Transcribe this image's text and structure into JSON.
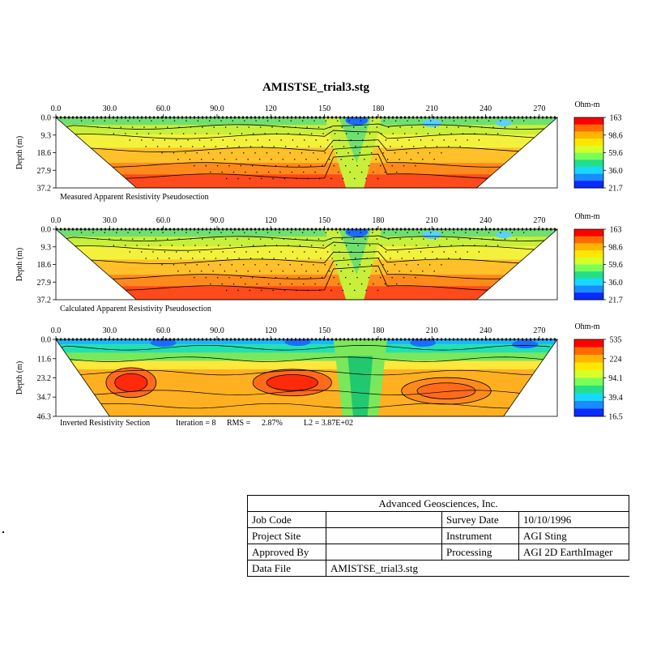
{
  "figure": {
    "title": "AMISTSE_trial3.stg"
  },
  "chart_data": [
    {
      "type": "heatmap",
      "title": "",
      "caption": "Measured Apparent Resistivity Pseudosection",
      "xlabel": "",
      "ylabel": "Depth (m)",
      "x_ticks": [
        "0.0",
        "30.0",
        "60.0",
        "90.0",
        "120",
        "150",
        "180",
        "210",
        "240",
        "270"
      ],
      "x_tick_values": [
        0,
        30,
        60,
        90,
        120,
        150,
        180,
        210,
        240,
        270
      ],
      "xlim": [
        0,
        280
      ],
      "y_ticks": [
        "0.0",
        "9.3",
        "18.6",
        "27.9",
        "37.2"
      ],
      "y_tick_values": [
        0,
        9.3,
        18.6,
        27.9,
        37.2
      ],
      "ylim": [
        0,
        37.2
      ],
      "color_scale": {
        "unit": "Ohm-m",
        "labels": [
          "163",
          "98.6",
          "59.6",
          "36.0",
          "21.7"
        ]
      },
      "section_outline": {
        "x": [
          0,
          280,
          235,
          45
        ],
        "depth": [
          0,
          0,
          37.2,
          37.2
        ]
      },
      "bands": [
        {
          "color": "#2f7cff",
          "x": [
            155,
            165,
            175,
            185
          ],
          "depth": [
            0.5,
            0.5,
            3,
            1
          ]
        },
        {
          "color": "#66d9ff",
          "x": [
            20,
            260
          ],
          "depth": [
            0.5,
            2.5
          ]
        },
        {
          "color": "#6fe06f",
          "x": [
            10,
            270
          ],
          "depth": [
            1,
            6
          ]
        },
        {
          "color": "#f2f23c",
          "x": [
            20,
            260
          ],
          "depth": [
            6,
            16
          ]
        },
        {
          "color": "#ffb020",
          "x": [
            35,
            235
          ],
          "depth": [
            16,
            28
          ]
        },
        {
          "color": "#ff4a1c",
          "x": [
            55,
            215
          ],
          "depth": [
            28,
            37.2
          ]
        }
      ],
      "contour_levels": [
        5,
        10,
        17,
        25,
        31
      ],
      "data_points": {
        "x_range": [
          14,
          266
        ],
        "depth_range": [
          1.5,
          32
        ],
        "rows": 10
      }
    },
    {
      "type": "heatmap",
      "title": "",
      "caption": "Calculated Apparent Resistivity Pseudosection",
      "xlabel": "",
      "ylabel": "Depth (m)",
      "x_ticks": [
        "0.0",
        "30.0",
        "60.0",
        "90.0",
        "120",
        "150",
        "180",
        "210",
        "240",
        "270"
      ],
      "x_tick_values": [
        0,
        30,
        60,
        90,
        120,
        150,
        180,
        210,
        240,
        270
      ],
      "xlim": [
        0,
        280
      ],
      "y_ticks": [
        "0.0",
        "9.3",
        "18.6",
        "27.9",
        "37.2"
      ],
      "y_tick_values": [
        0,
        9.3,
        18.6,
        27.9,
        37.2
      ],
      "ylim": [
        0,
        37.2
      ],
      "color_scale": {
        "unit": "Ohm-m",
        "labels": [
          "163",
          "98.6",
          "59.6",
          "36.0",
          "21.7"
        ]
      },
      "section_outline": {
        "x": [
          0,
          280,
          235,
          45
        ],
        "depth": [
          0,
          0,
          37.2,
          37.2
        ]
      },
      "contour_levels": [
        5,
        10,
        17,
        25,
        31
      ],
      "data_points": {
        "x_range": [
          14,
          266
        ],
        "depth_range": [
          1.5,
          32
        ],
        "rows": 10
      }
    },
    {
      "type": "heatmap",
      "title": "",
      "caption": "Inverted Resistivity Section",
      "stats": {
        "iteration_label": "Iteration =",
        "iteration": "8",
        "rms_label": "RMS =",
        "rms": "2.87%",
        "l2_label": "L2 =",
        "l2": "3.87E+02"
      },
      "xlabel": "",
      "ylabel": "Depth (m)",
      "x_ticks": [
        "0.0",
        "30.0",
        "60.0",
        "90.0",
        "120",
        "150",
        "180",
        "210",
        "240",
        "270"
      ],
      "x_tick_values": [
        0,
        30,
        60,
        90,
        120,
        150,
        180,
        210,
        240,
        270
      ],
      "xlim": [
        0,
        280
      ],
      "y_ticks": [
        "0.0",
        "11.6",
        "23.2",
        "34.7",
        "46.3"
      ],
      "y_tick_values": [
        0,
        11.6,
        23.2,
        34.7,
        46.3
      ],
      "ylim": [
        0,
        46.3
      ],
      "color_scale": {
        "unit": "Ohm-m",
        "labels": [
          "535",
          "224",
          "94.1",
          "39.4",
          "16.5"
        ]
      },
      "section_outline": {
        "x": [
          0,
          280,
          250,
          30
        ],
        "depth": [
          0,
          0,
          46.3,
          46.3
        ]
      },
      "anomalies": [
        {
          "x": 42,
          "depth": 26,
          "rx": 14,
          "rdepth": 9,
          "level": "high"
        },
        {
          "x": 132,
          "depth": 26,
          "rx": 22,
          "rdepth": 8,
          "level": "high"
        },
        {
          "x": 218,
          "depth": 31,
          "rx": 25,
          "rdepth": 8,
          "level": "elevated"
        }
      ],
      "contour_levels": [
        5,
        12,
        20,
        32,
        40
      ]
    }
  ],
  "info_block": {
    "company": "Advanced Geosciences, Inc.",
    "rows": [
      {
        "k1": "Job Code",
        "v1": "",
        "k2": "Survey Date",
        "v2": "10/10/1996"
      },
      {
        "k1": "Project Site",
        "v1": "",
        "k2": "Instrument",
        "v2": "AGI Sting"
      },
      {
        "k1": "Approved By",
        "v1": "",
        "k2": "Processing",
        "v2": "AGI 2D EarthImager"
      }
    ],
    "data_file_label": "Data File",
    "data_file_value": "AMISTSE_trial3.stg"
  }
}
